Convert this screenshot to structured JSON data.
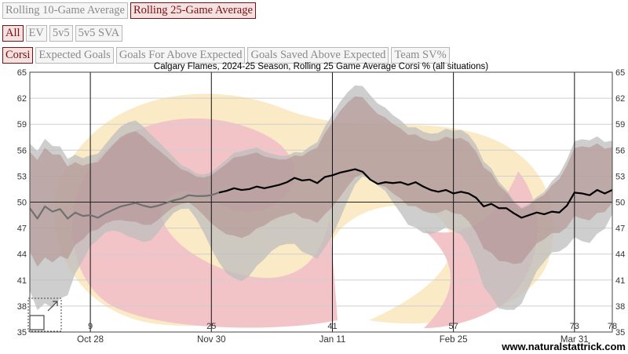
{
  "controls": {
    "window": [
      {
        "label": "Rolling 10-Game Average",
        "active": false
      },
      {
        "label": "Rolling 25-Game Average",
        "active": true
      }
    ],
    "situation": [
      {
        "label": "All",
        "active": true
      },
      {
        "label": "EV",
        "active": false
      },
      {
        "label": "5v5",
        "active": false
      },
      {
        "label": "5v5 SVA",
        "active": false
      }
    ],
    "metric": [
      {
        "label": "Corsi",
        "active": true
      },
      {
        "label": "Expected Goals",
        "active": false
      },
      {
        "label": "Goals For Above Expected",
        "active": false
      },
      {
        "label": "Goals Saved Above Expected",
        "active": false
      },
      {
        "label": "Team SV%",
        "active": false
      }
    ]
  },
  "chart_data": {
    "type": "line",
    "title": "Calgary Flames, 2024-25 Season, Rolling 25 Game Average Corsi % (all situations)",
    "watermark": "www.naturalstattrick.com",
    "xlim": [
      1,
      78
    ],
    "ylim": [
      35,
      65
    ],
    "yticks": [
      35,
      38,
      41,
      44,
      47,
      50,
      53,
      56,
      59,
      62,
      65
    ],
    "reference_line": 50,
    "game_ticks": [
      {
        "game": 9,
        "date": "Oct 28"
      },
      {
        "game": 25,
        "date": "Nov 30"
      },
      {
        "game": 41,
        "date": "Jan 11"
      },
      {
        "game": 57,
        "date": "Feb 25"
      },
      {
        "game": 73,
        "date": "Mar 31"
      },
      {
        "game": 78,
        "date": ""
      }
    ],
    "colors": {
      "line_early": "#707070",
      "line": "#000000",
      "band_dark": "#b08a8a",
      "band_light": "#bdbdbd",
      "logo_red": "#f2c4c8",
      "logo_gold": "#fbeac6"
    },
    "series": [
      {
        "x": [
          1,
          2,
          3,
          4,
          5,
          6,
          7,
          8,
          9,
          10,
          11,
          12,
          13,
          14,
          15,
          16,
          17,
          18,
          19,
          20,
          21,
          22,
          23,
          24,
          25,
          26,
          27,
          28,
          29,
          30,
          31,
          32,
          33,
          34,
          35,
          36,
          37,
          38,
          39,
          40,
          41,
          42,
          43,
          44,
          45,
          46,
          47,
          48,
          49,
          50,
          51,
          52,
          53,
          54,
          55,
          56,
          57,
          58,
          59,
          60,
          61,
          62,
          63,
          64,
          65,
          66,
          67,
          68,
          69,
          70,
          71,
          72,
          73,
          74,
          75,
          76,
          77,
          78
        ],
        "values": [
          49.3,
          48.1,
          49.5,
          48.9,
          49.2,
          48.1,
          48.8,
          48.4,
          48.5,
          48.2,
          48.7,
          49.1,
          49.5,
          49.7,
          49.9,
          49.6,
          49.4,
          49.6,
          49.9,
          50.2,
          50.4,
          50.8,
          50.7,
          50.7,
          50.8,
          51.1,
          51.3,
          51.6,
          51.4,
          51.5,
          51.8,
          51.6,
          51.8,
          52.0,
          52.3,
          52.8,
          52.5,
          52.6,
          52.2,
          52.9,
          53.1,
          53.4,
          53.6,
          53.8,
          53.5,
          52.6,
          52.1,
          52.3,
          52.2,
          52.3,
          52.0,
          52.3,
          51.8,
          51.4,
          51.2,
          51.4,
          51.0,
          51.2,
          51.0,
          50.5,
          49.5,
          49.8,
          49.3,
          49.3,
          48.7,
          48.2,
          48.5,
          48.8,
          48.6,
          48.9,
          48.8,
          49.6,
          51.1,
          51.0,
          50.8,
          51.4,
          51.0,
          51.4
        ]
      }
    ]
  }
}
